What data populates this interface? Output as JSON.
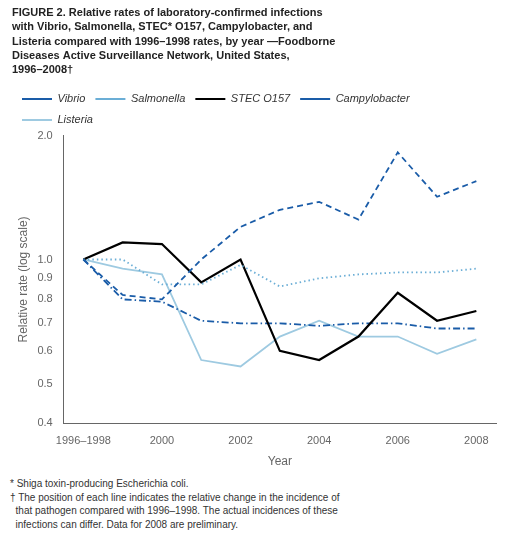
{
  "chart_data": {
    "type": "line",
    "title": [
      "FIGURE 2. Relative rates of laboratory-confirmed infections",
      "with Vibrio, Salmonella, STEC* O157, Campylobacter, and",
      "Listeria compared with 1996–1998 rates, by year —Foodborne",
      "Diseases Active Surveillance Network, United States,",
      "1996–2008†"
    ],
    "x_label": "Year",
    "y_label": "Relative rate (log scale)",
    "categories": [
      "1996–1998",
      null,
      "2000",
      null,
      "2002",
      null,
      "2004",
      null,
      "2006",
      null,
      "2008"
    ],
    "series": [
      {
        "name": "Vibrio",
        "color": "#1a5ca8",
        "line_style": "dashed",
        "values": [
          1.0,
          0.82,
          0.8,
          1.0,
          1.2,
          1.32,
          1.38,
          1.25,
          1.82,
          1.42,
          1.55
        ]
      },
      {
        "name": "Salmonella",
        "color": "#6baed6",
        "line_style": "dotted",
        "values": [
          1.0,
          1.0,
          0.87,
          0.87,
          0.97,
          0.86,
          0.9,
          0.92,
          0.93,
          0.93,
          0.95
        ]
      },
      {
        "name": "STEC O157",
        "color": "#000000",
        "line_style": "solid",
        "values": [
          1.0,
          1.1,
          1.09,
          0.88,
          1.0,
          0.6,
          0.57,
          0.65,
          0.83,
          0.71,
          0.75
        ]
      },
      {
        "name": "Campylobacter",
        "color": "#1a5ca8",
        "line_style": "dashdot",
        "values": [
          1.0,
          0.8,
          0.79,
          0.71,
          0.7,
          0.7,
          0.69,
          0.7,
          0.7,
          0.68,
          0.68
        ]
      },
      {
        "name": "Listeria",
        "color": "#9ecae1",
        "line_style": "solid",
        "values": [
          1.0,
          0.95,
          0.92,
          0.57,
          0.55,
          0.65,
          0.71,
          0.65,
          0.65,
          0.59,
          0.64
        ]
      }
    ],
    "log": "y",
    "ylim": [
      0.4,
      2.0
    ],
    "yticks": [
      0.4,
      0.5,
      0.6,
      0.7,
      0.8,
      0.9,
      {
        "value": 1.0,
        "label": "1.0"
      },
      {
        "value": 2.0,
        "label": "2.0"
      }
    ],
    "grid": false,
    "legend": "upper left",
    "annotations": [
      "* Shiga toxin-producing Escherichia coli.",
      "† The position of each line indicates the relative change in the incidence of",
      "  that pathogen compared with 1996–1998. The actual incidences of these",
      "  infections can differ. Data for 2008 are preliminary."
    ]
  }
}
